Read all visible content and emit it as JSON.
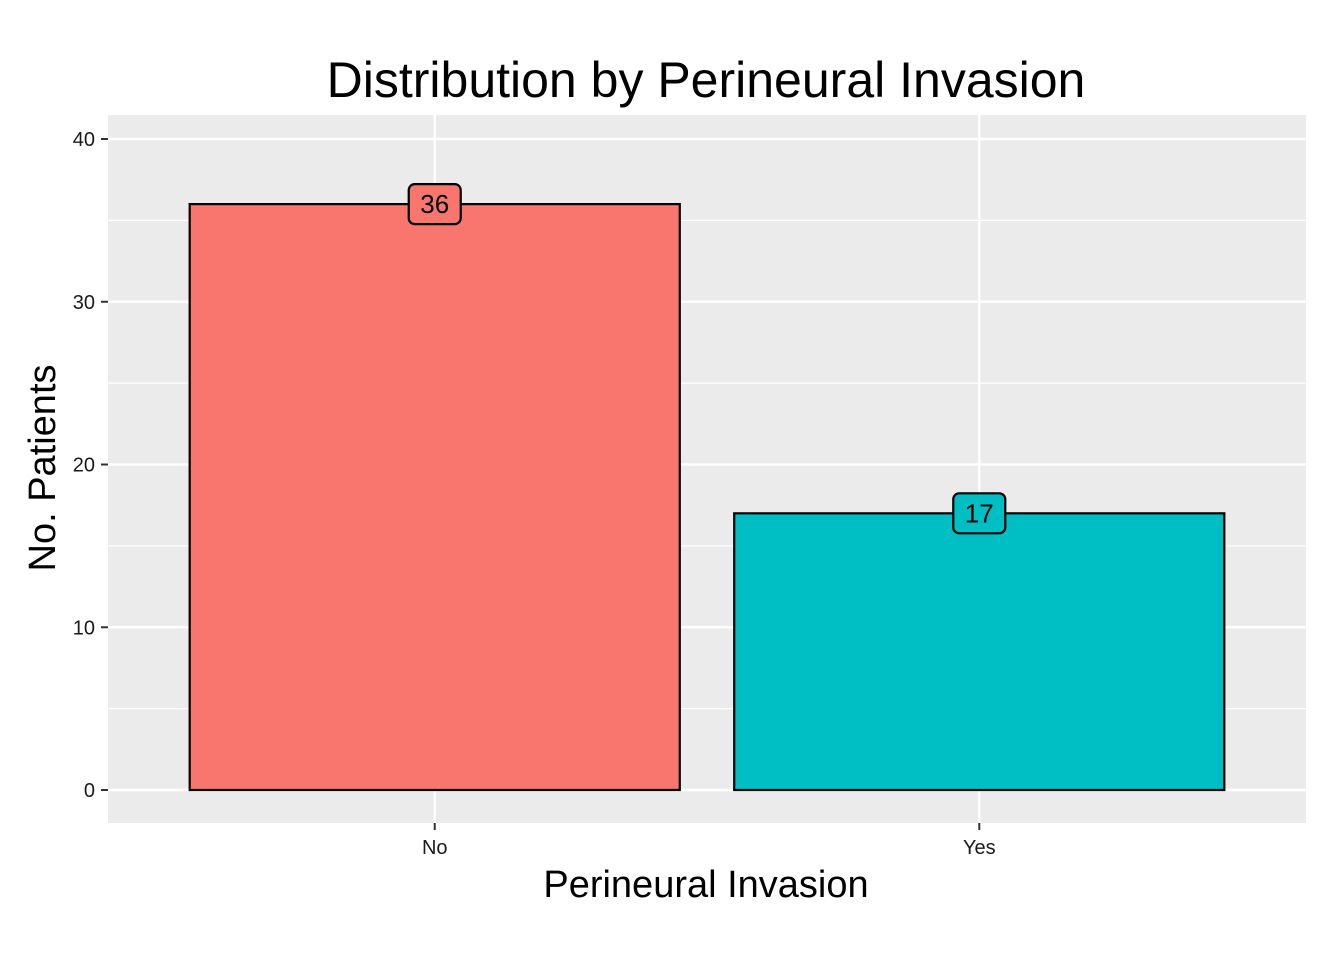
{
  "chart_data": {
    "type": "bar",
    "title": "Distribution by Perineural Invasion",
    "xlabel": "Perineural Invasion",
    "ylabel": "No. Patients",
    "categories": [
      "No",
      "Yes"
    ],
    "values": [
      36,
      17
    ],
    "data_labels": [
      "36",
      "17"
    ],
    "colors": [
      "#F8766D",
      "#00BFC4"
    ],
    "ylim": [
      -2,
      40.5
    ],
    "yticks": [
      0,
      10,
      20,
      30,
      40
    ],
    "ytick_labels": [
      "0",
      "10",
      "20",
      "30",
      "40"
    ],
    "grid": true,
    "legend": "none",
    "panel_background": "#EBEBEB",
    "gridline_color": "#FFFFFF"
  }
}
